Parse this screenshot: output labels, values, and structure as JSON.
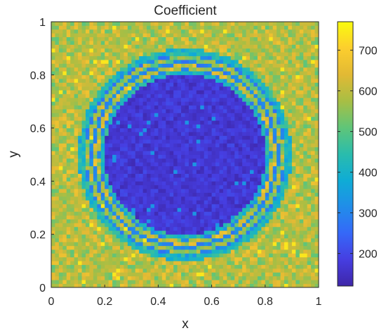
{
  "chart_data": {
    "type": "heatmap",
    "title": "Coefficient",
    "xlabel": "x",
    "ylabel": "y",
    "xlim": [
      0,
      1
    ],
    "ylim": [
      0,
      1
    ],
    "x_ticks": [
      0,
      0.2,
      0.4,
      0.6,
      0.8,
      1
    ],
    "y_ticks": [
      0,
      0.2,
      0.4,
      0.6,
      0.8,
      1
    ],
    "x_tick_labels": [
      "0",
      "0.2",
      "0.4",
      "0.6",
      "0.8",
      "1"
    ],
    "y_tick_labels": [
      "0",
      "0.2",
      "0.4",
      "0.6",
      "0.8",
      "1"
    ],
    "colorbar": {
      "range": [
        120,
        770
      ],
      "ticks": [
        200,
        300,
        400,
        500,
        600,
        700
      ],
      "tick_labels": [
        "200",
        "300",
        "400",
        "500",
        "600",
        "700"
      ],
      "colormap": "parula"
    },
    "field": {
      "center": [
        0.5,
        0.5
      ],
      "inner_disk_radius": 0.3,
      "inner_value": 170,
      "background_value": 590,
      "rings": [
        {
          "radius": 0.33,
          "value": 600
        },
        {
          "radius": 0.36,
          "value": 560
        }
      ],
      "halo_outer_radius": 0.4,
      "halo_value": 420,
      "texture": "checkerboard noise"
    },
    "grid": false,
    "colors": {
      "low": "#3e26a8",
      "mid": "#2ab5b7",
      "high": "#fadc1c",
      "top": "#f9fb0e"
    }
  }
}
